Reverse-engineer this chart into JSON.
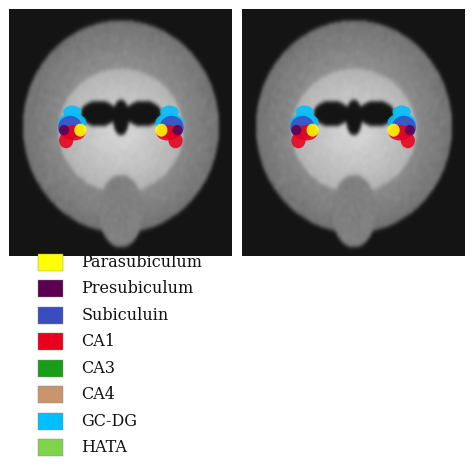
{
  "legend_items": [
    {
      "label": "Parasubiculum",
      "color": "#FFFF00"
    },
    {
      "label": "Presubiculum",
      "color": "#5B0050"
    },
    {
      "label": "Subiculuin",
      "color": "#3B4CC0"
    },
    {
      "label": "CA1",
      "color": "#E8001C"
    },
    {
      "label": "CA3",
      "color": "#1A9E1A"
    },
    {
      "label": "CA4",
      "color": "#C8956C"
    },
    {
      "label": "GC-DG",
      "color": "#00BFFF"
    },
    {
      "label": "HATA",
      "color": "#7FD44B"
    }
  ],
  "bg_color": "#FFFFFF",
  "fig_width": 4.74,
  "fig_height": 4.74,
  "dpi": 100,
  "legend_fontsize": 11.5
}
